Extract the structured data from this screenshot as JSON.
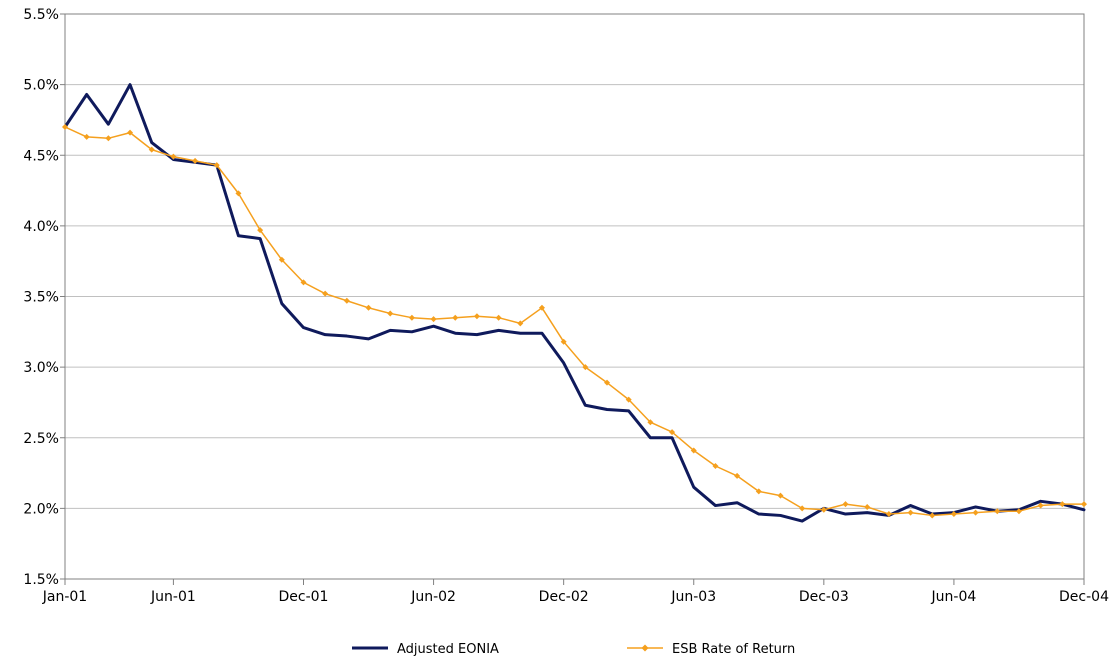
{
  "colors": {
    "background": "#ffffff",
    "grid": "#c0c0c0",
    "axis": "#808080",
    "eonia": "#0f1a5c",
    "esb": "#f5a01e"
  },
  "chart_data": {
    "type": "line",
    "xlabel": "",
    "ylabel": "",
    "ylim": [
      1.5,
      5.5
    ],
    "y_ticks": [
      1.5,
      2.0,
      2.5,
      3.0,
      3.5,
      4.0,
      4.5,
      5.0,
      5.5
    ],
    "y_tick_labels": [
      "1.5%",
      "2.0%",
      "2.5%",
      "3.0%",
      "3.5%",
      "4.0%",
      "4.5%",
      "5.0%",
      "5.5%"
    ],
    "x_ticks": [
      "Jan-01",
      "Jun-01",
      "Dec-01",
      "Jun-02",
      "Dec-02",
      "Jun-03",
      "Dec-03",
      "Jun-04",
      "Dec-04"
    ],
    "grid": "horizontal",
    "legend_position": "bottom",
    "categories": [
      "Jan-01",
      "Feb-01",
      "Mar-01",
      "Apr-01",
      "May-01",
      "Jun-01",
      "Jul-01",
      "Aug-01",
      "Sep-01",
      "Oct-01",
      "Nov-01",
      "Dec-01",
      "Jan-02",
      "Feb-02",
      "Mar-02",
      "Apr-02",
      "May-02",
      "Jun-02",
      "Jul-02",
      "Aug-02",
      "Sep-02",
      "Oct-02",
      "Nov-02",
      "Dec-02",
      "Jan-03",
      "Feb-03",
      "Mar-03",
      "Apr-03",
      "May-03",
      "Jun-03",
      "Jul-03",
      "Aug-03",
      "Sep-03",
      "Oct-03",
      "Nov-03",
      "Dec-03",
      "Jan-04",
      "Feb-04",
      "Mar-04",
      "Apr-04",
      "May-04",
      "Jun-04",
      "Jul-04",
      "Aug-04",
      "Sep-04",
      "Oct-04",
      "Nov-04",
      "Dec-04"
    ],
    "series": [
      {
        "name": "Adjusted EONIA",
        "marker": "none",
        "values": [
          4.7,
          4.93,
          4.72,
          5.0,
          4.59,
          4.47,
          4.45,
          4.43,
          3.93,
          3.91,
          3.45,
          3.28,
          3.23,
          3.22,
          3.2,
          3.26,
          3.25,
          3.29,
          3.24,
          3.23,
          3.26,
          3.24,
          3.24,
          3.03,
          2.73,
          2.7,
          2.69,
          2.5,
          2.5,
          2.15,
          2.02,
          2.04,
          1.96,
          1.95,
          1.91,
          2.0,
          1.96,
          1.97,
          1.95,
          2.02,
          1.96,
          1.97,
          2.01,
          1.98,
          1.99,
          2.05,
          2.03,
          1.99
        ]
      },
      {
        "name": "ESB Rate of Return",
        "marker": "diamond",
        "values": [
          4.7,
          4.63,
          4.62,
          4.66,
          4.54,
          4.49,
          4.46,
          4.43,
          4.23,
          3.97,
          3.76,
          3.6,
          3.52,
          3.47,
          3.42,
          3.38,
          3.35,
          3.34,
          3.35,
          3.36,
          3.35,
          3.31,
          3.42,
          3.18,
          3.0,
          2.89,
          2.77,
          2.61,
          2.54,
          2.41,
          2.3,
          2.23,
          2.12,
          2.09,
          2.0,
          1.99,
          2.03,
          2.01,
          1.96,
          1.97,
          1.95,
          1.96,
          1.97,
          1.98,
          1.98,
          2.02,
          2.03,
          2.03
        ]
      }
    ]
  }
}
